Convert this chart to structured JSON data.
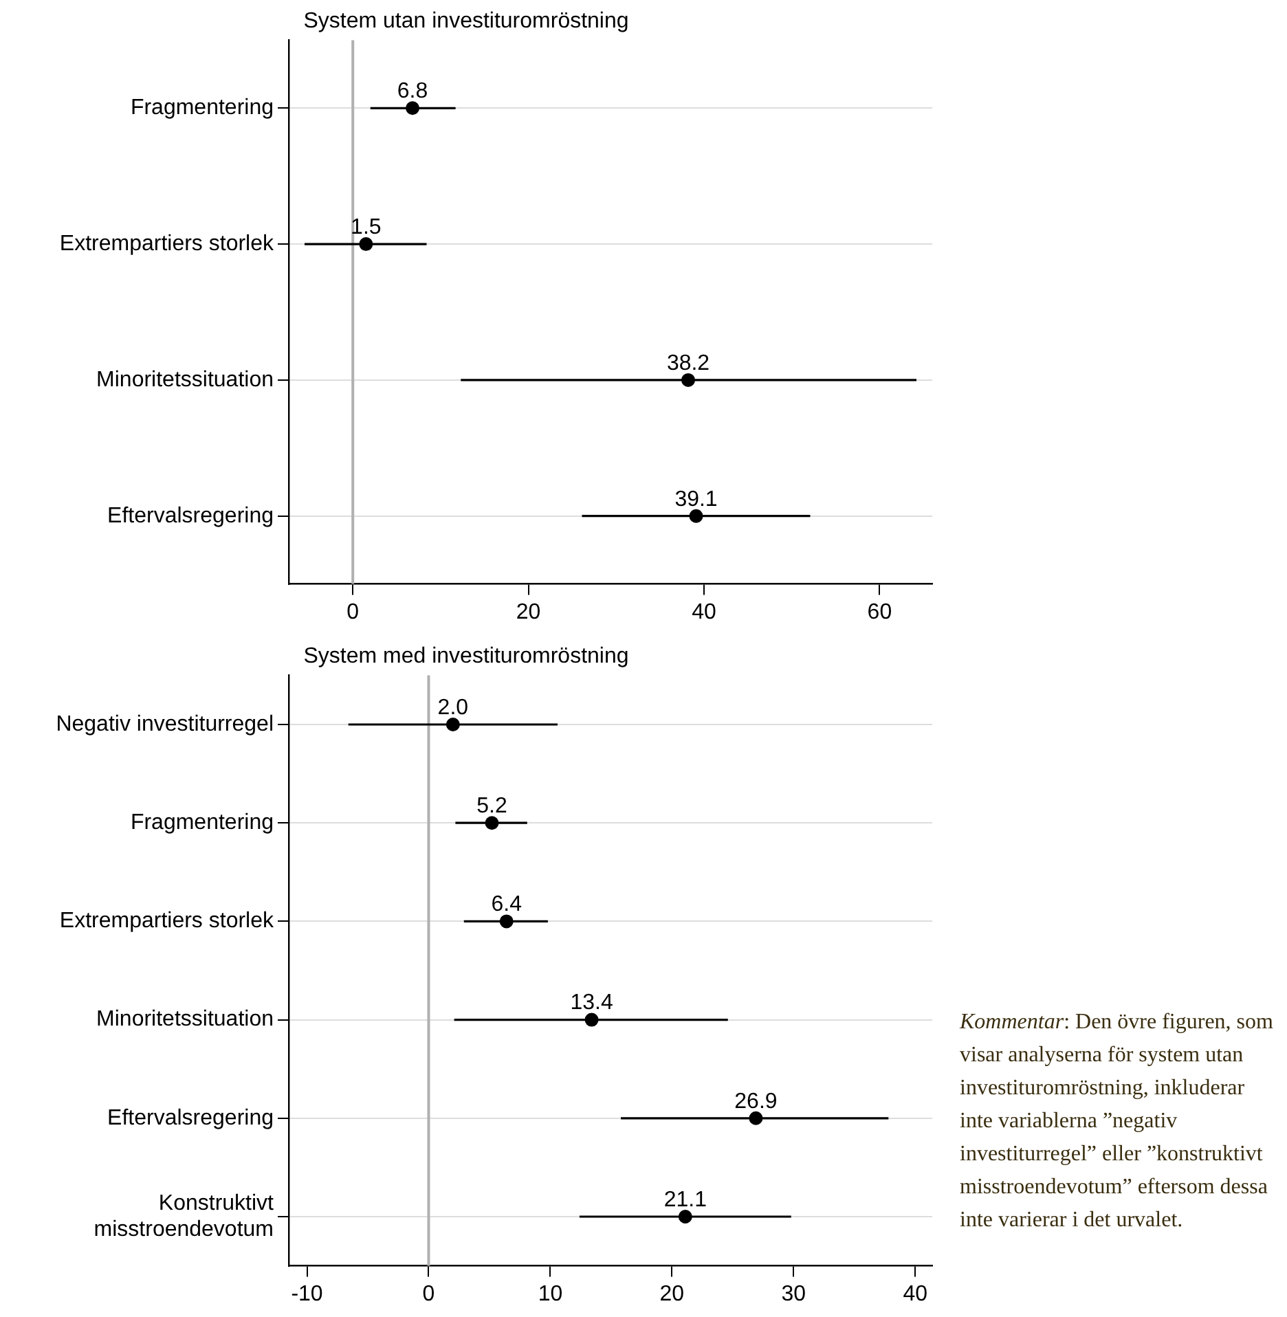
{
  "chart_data": [
    {
      "type": "scatter",
      "orientation": "horizontal",
      "title": "System utan investituromröstning",
      "categories": [
        "Fragmentering",
        "Extrempartiers storlek",
        "Minoritetssituation",
        "Eftervalsregering"
      ],
      "values": [
        6.8,
        1.5,
        38.2,
        39.1
      ],
      "value_labels": [
        "6.8",
        "1.5",
        "38.2",
        "39.1"
      ],
      "errors": [
        [
          2.0,
          11.7
        ],
        [
          -5.5,
          8.4
        ],
        [
          12.3,
          64.2
        ],
        [
          26.1,
          52.1
        ]
      ],
      "color": "#000000",
      "marker": "circle",
      "xlim": [
        -7.3,
        66
      ],
      "xticks": [
        0,
        20,
        40,
        60
      ],
      "grid": "y",
      "ref_lines": [
        {
          "axis": "x",
          "value": 0,
          "color": "#b0b0b0"
        }
      ]
    },
    {
      "type": "scatter",
      "orientation": "horizontal",
      "title": "System med investituromröstning",
      "categories": [
        "Negativ investiturregel",
        "Fragmentering",
        "Extrempartiers storlek",
        "Minoritetssituation",
        "Eftervalsregering",
        "Konstruktivt misstroendevotum"
      ],
      "values": [
        2.0,
        5.2,
        6.4,
        13.4,
        26.9,
        21.1
      ],
      "value_labels": [
        "2.0",
        "5.2",
        "6.4",
        "13.4",
        "26.9",
        "21.1"
      ],
      "errors": [
        [
          -6.6,
          10.6
        ],
        [
          2.2,
          8.1
        ],
        [
          2.9,
          9.8
        ],
        [
          2.1,
          24.6
        ],
        [
          15.8,
          37.8
        ],
        [
          12.4,
          29.8
        ]
      ],
      "color": "#000000",
      "marker": "circle",
      "xlim": [
        -11.5,
        41.4
      ],
      "xticks": [
        -10,
        0,
        10,
        20,
        30,
        40
      ],
      "grid": "y",
      "ref_lines": [
        {
          "axis": "x",
          "value": 0,
          "color": "#b0b0b0"
        }
      ],
      "annotations": [
        "Kommentar: Den övre figuren, som visar analyserna för system utan investituromröstning, inkluderar inte variablerna ”negativ investiturregel” eller ”konstruktivt misstroendevotum” eftersom dessa inte varierar i det urvalet."
      ]
    }
  ]
}
